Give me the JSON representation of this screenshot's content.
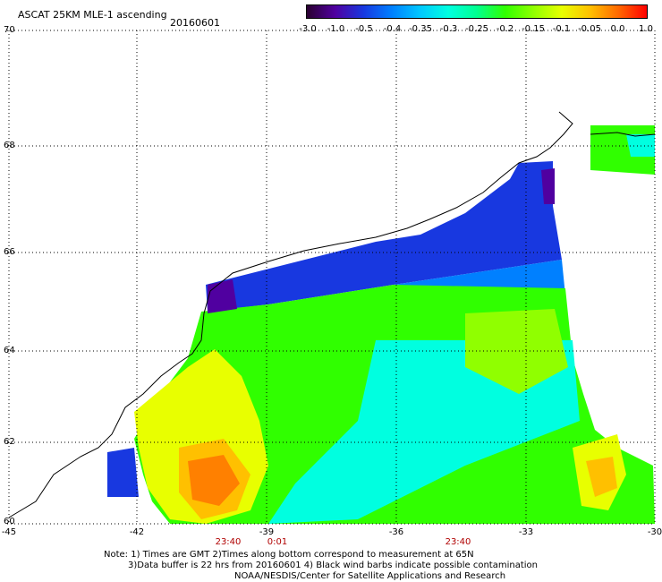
{
  "header": {
    "title": "ASCAT 25KM MLE-1 ascending",
    "date": "20160601"
  },
  "colorbar": {
    "labels": [
      "-3.0",
      "-1.0",
      "-0.5",
      "-0.4",
      "-0.35",
      "-0.3",
      "-0.25",
      "-0.2",
      "-0.15",
      "-0.1",
      "-0.05",
      "0.0",
      "1.0"
    ],
    "colors": [
      "#2a0030",
      "#5000a0",
      "#1838e0",
      "#0080ff",
      "#00c8ff",
      "#00ffe0",
      "#00ff90",
      "#30ff00",
      "#90ff00",
      "#e8ff00",
      "#ffc000",
      "#ff6800",
      "#ff0000"
    ]
  },
  "map": {
    "lat_labels": [
      "70",
      "68",
      "66",
      "64",
      "62",
      "60"
    ],
    "lon_labels": [
      "-45",
      "-42",
      "-39",
      "-36",
      "-33",
      "-30"
    ],
    "lat_range": [
      60,
      70
    ],
    "lon_range": [
      -45,
      -30
    ],
    "gridlines": true
  },
  "times": [
    "23:40",
    "0:01",
    "23:40"
  ],
  "notes": [
    "Note: 1) Times are GMT 2)Times along bottom correspond to measurement at 65N",
    "3)Data buffer is 22 hrs from 20160601 4) Black wind barbs indicate possible contamination",
    "NOAA/NESDIS/Center for Satellite Applications and Research"
  ]
}
